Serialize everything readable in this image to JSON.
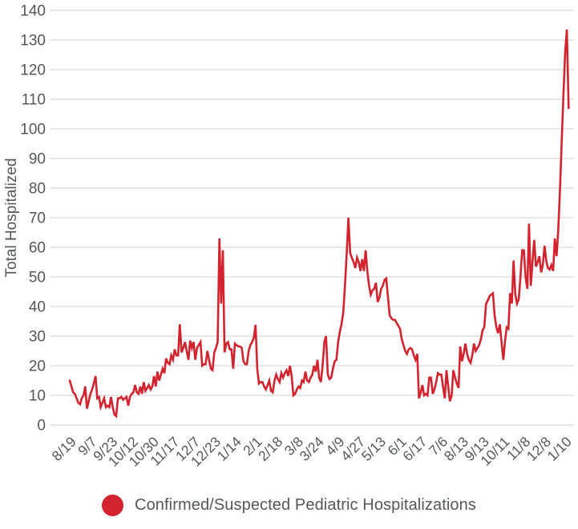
{
  "chart_data": {
    "type": "line",
    "title": "",
    "xlabel": "",
    "ylabel": "Total Hospitalized",
    "ylim": [
      0,
      140
    ],
    "grid": "horizontal",
    "legend_position": "bottom",
    "y_ticks": [
      0,
      10,
      20,
      30,
      40,
      50,
      60,
      70,
      80,
      90,
      100,
      110,
      120,
      130,
      140
    ],
    "x_tick_labels": [
      "8/19",
      "9/7",
      "9/23",
      "10/12",
      "10/30",
      "11/17",
      "12/7",
      "12/23",
      "1/14",
      "2/1",
      "2/18",
      "3/8",
      "3/24",
      "4/9",
      "4/27",
      "5/13",
      "6/1",
      "6/17",
      "7/6",
      "8/13",
      "9/13",
      "10/11",
      "11/8",
      "12/8",
      "1/10"
    ],
    "points_per_tick_interval": 12,
    "series": [
      {
        "name": "Confirmed/Suspected Pediatric Hospitalizations",
        "color": "#d2232e",
        "values": [
          15,
          13,
          11,
          10.5,
          9,
          7.5,
          7,
          9,
          10,
          13,
          5.5,
          8,
          10.5,
          12,
          14,
          16.5,
          9,
          9.5,
          6,
          7.5,
          9,
          6,
          6.5,
          6,
          9.5,
          6,
          3.5,
          3,
          9,
          9,
          9.5,
          8.5,
          9,
          9.5,
          6.5,
          9.5,
          10.5,
          11,
          13.5,
          11,
          10.5,
          13,
          10.5,
          14.5,
          11.5,
          12.5,
          13.5,
          12,
          13,
          16.5,
          13,
          18,
          15,
          17,
          19,
          17.5,
          22.5,
          21,
          20.5,
          23.5,
          22,
          25.5,
          23.5,
          23.5,
          34,
          24.5,
          26,
          28,
          25,
          22,
          28.5,
          26,
          28,
          22,
          26,
          27,
          28,
          20,
          20.5,
          20.5,
          25,
          22,
          19,
          18.5,
          24.5,
          26,
          28,
          63,
          41,
          59,
          24.5,
          27.5,
          28,
          25.5,
          25.5,
          19,
          27.5,
          27,
          26.5,
          26.5,
          26,
          21.5,
          20.5,
          20.5,
          25,
          27,
          28,
          29.5,
          33.8,
          19,
          14,
          14.5,
          14.5,
          13,
          12,
          13.5,
          15,
          11.5,
          11,
          15,
          17,
          15.5,
          14.5,
          17.5,
          16,
          17.5,
          18.5,
          16.5,
          20,
          16.5,
          10,
          10.5,
          12,
          13,
          12.5,
          15,
          14.5,
          18,
          15,
          14.5,
          16,
          17,
          20,
          18,
          22,
          16,
          14.5,
          20,
          28,
          30,
          17,
          15.5,
          16,
          19,
          21.5,
          22,
          28,
          31.5,
          34,
          38,
          47,
          58,
          70,
          58,
          56.5,
          55,
          53,
          56.5,
          55,
          52,
          56,
          52,
          59,
          52,
          47,
          44,
          45.5,
          46,
          48,
          41.5,
          43,
          46,
          47,
          49,
          49.5,
          43,
          37,
          36,
          35.5,
          35.5,
          34.5,
          33.5,
          32.5,
          29,
          27,
          25,
          24,
          25.5,
          26,
          25.5,
          23.5,
          22,
          24,
          9,
          11,
          13.5,
          10,
          10.5,
          10,
          16,
          16,
          10.5,
          12,
          14.5,
          17.5,
          17,
          17,
          13,
          9,
          18.5,
          13,
          8,
          10,
          18.5,
          16,
          14,
          12.5,
          26.5,
          21.5,
          24,
          27.5,
          24,
          22,
          21,
          23.5,
          27.5,
          25,
          26,
          27,
          29,
          32,
          33,
          40.8,
          42,
          43.5,
          44,
          44.5,
          37,
          33,
          31,
          34,
          28,
          22,
          28,
          33,
          32.5,
          44.5,
          41,
          55.5,
          44,
          41,
          42.5,
          50,
          59,
          59,
          50,
          46,
          68,
          47,
          55,
          62.5,
          53.5,
          55,
          57,
          51.5,
          54,
          60.5,
          55.5,
          53,
          52.5,
          54,
          52,
          63,
          57,
          66,
          80,
          96,
          112,
          126,
          133.5,
          107
        ]
      }
    ]
  },
  "style": {
    "text_color": "#54585a",
    "grid_color": "#dadada",
    "background": "#ffffff",
    "accent_red": "#d2232e"
  }
}
